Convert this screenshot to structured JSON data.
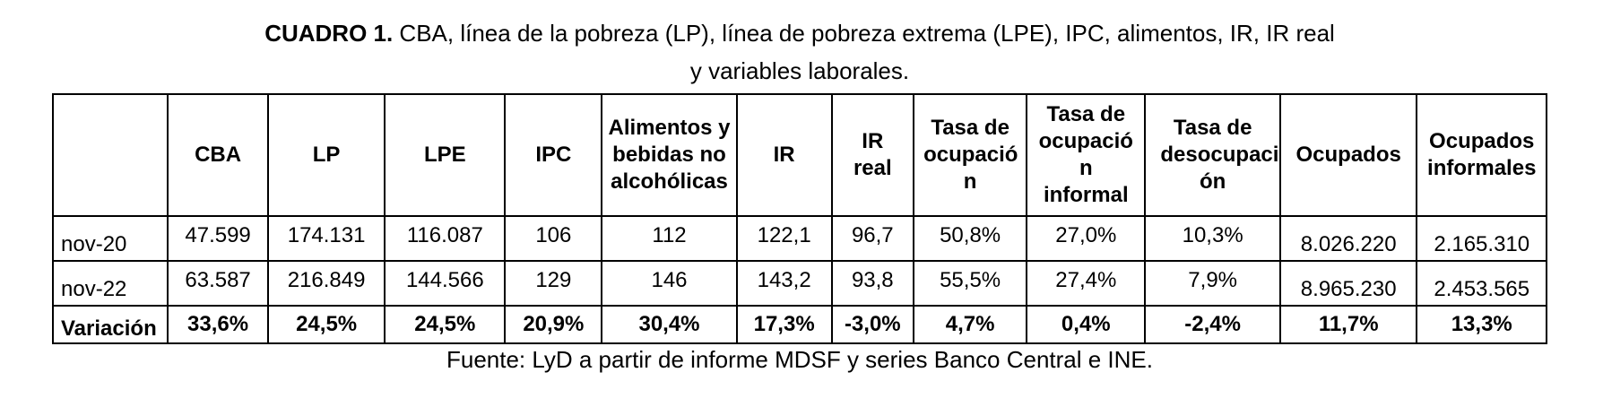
{
  "caption": {
    "bold": "CUADRO 1.",
    "line1_rest": " CBA, línea de la pobreza (LP), línea de pobreza extrema (LPE), IPC, alimentos, IR, IR real",
    "line2": "y variables laborales."
  },
  "table": {
    "headers": [
      "",
      "CBA",
      "LP",
      "LPE",
      "IPC",
      "Alimentos y bebidas no alcohólicas",
      "IR",
      "IR real",
      "Tasa de ocupació n",
      "Tasa de ocupació n informal",
      "Tasa de desocupaci ón",
      "Ocupados",
      "Ocupados informales"
    ],
    "rows": [
      {
        "label": "nov-20",
        "cells": [
          "47.599",
          "174.131",
          "116.087",
          "106",
          "112",
          "122,1",
          "96,7",
          "50,8%",
          "27,0%",
          "10,3%",
          "8.026.220",
          "2.165.310"
        ]
      },
      {
        "label": "nov-22",
        "cells": [
          "63.587",
          "216.849",
          "144.566",
          "129",
          "146",
          "143,2",
          "93,8",
          "55,5%",
          "27,4%",
          "7,9%",
          "8.965.230",
          "2.453.565"
        ]
      },
      {
        "label": "Variación",
        "cells": [
          "33,6%",
          "24,5%",
          "24,5%",
          "20,9%",
          "30,4%",
          "17,3%",
          "-3,0%",
          "4,7%",
          "0,4%",
          "-2,4%",
          "11,7%",
          "13,3%"
        ]
      }
    ]
  },
  "source": "Fuente: LyD a partir de informe MDSF y series Banco Central e INE."
}
